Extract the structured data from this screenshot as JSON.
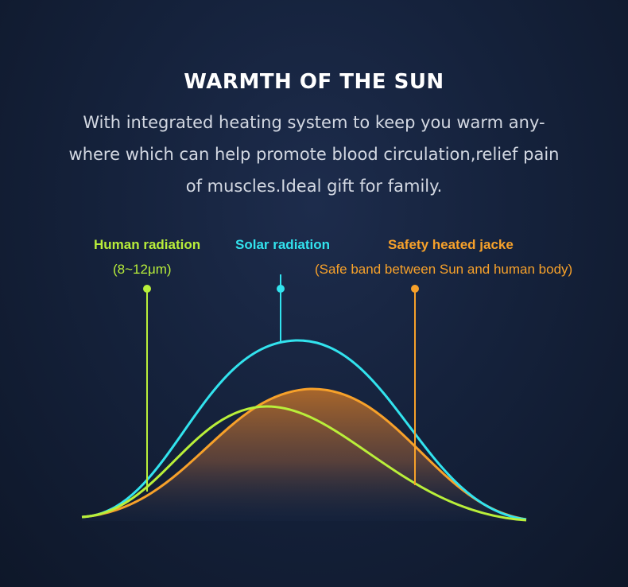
{
  "heading": {
    "title": "WARMTH OF THE SUN",
    "description_lines": [
      "With integrated heating system to keep you warm any-",
      "where which can help promote blood circulation,relief pain",
      "of muscles.Ideal gift for family."
    ]
  },
  "labels": {
    "human": {
      "title": "Human radiation",
      "subtitle": "(8~12μm)",
      "color": "#b9ef3a"
    },
    "solar": {
      "title": "Solar radiation",
      "color": "#32e3ee"
    },
    "safety": {
      "title": "Safety heated jacke",
      "subtitle": "(Safe band between Sun and human body)",
      "color": "#f7a12a"
    }
  },
  "colors": {
    "grid_line": "#8a93a8",
    "fill_top": "#b06a2a",
    "fill_bottom": "#1a2a48"
  }
}
